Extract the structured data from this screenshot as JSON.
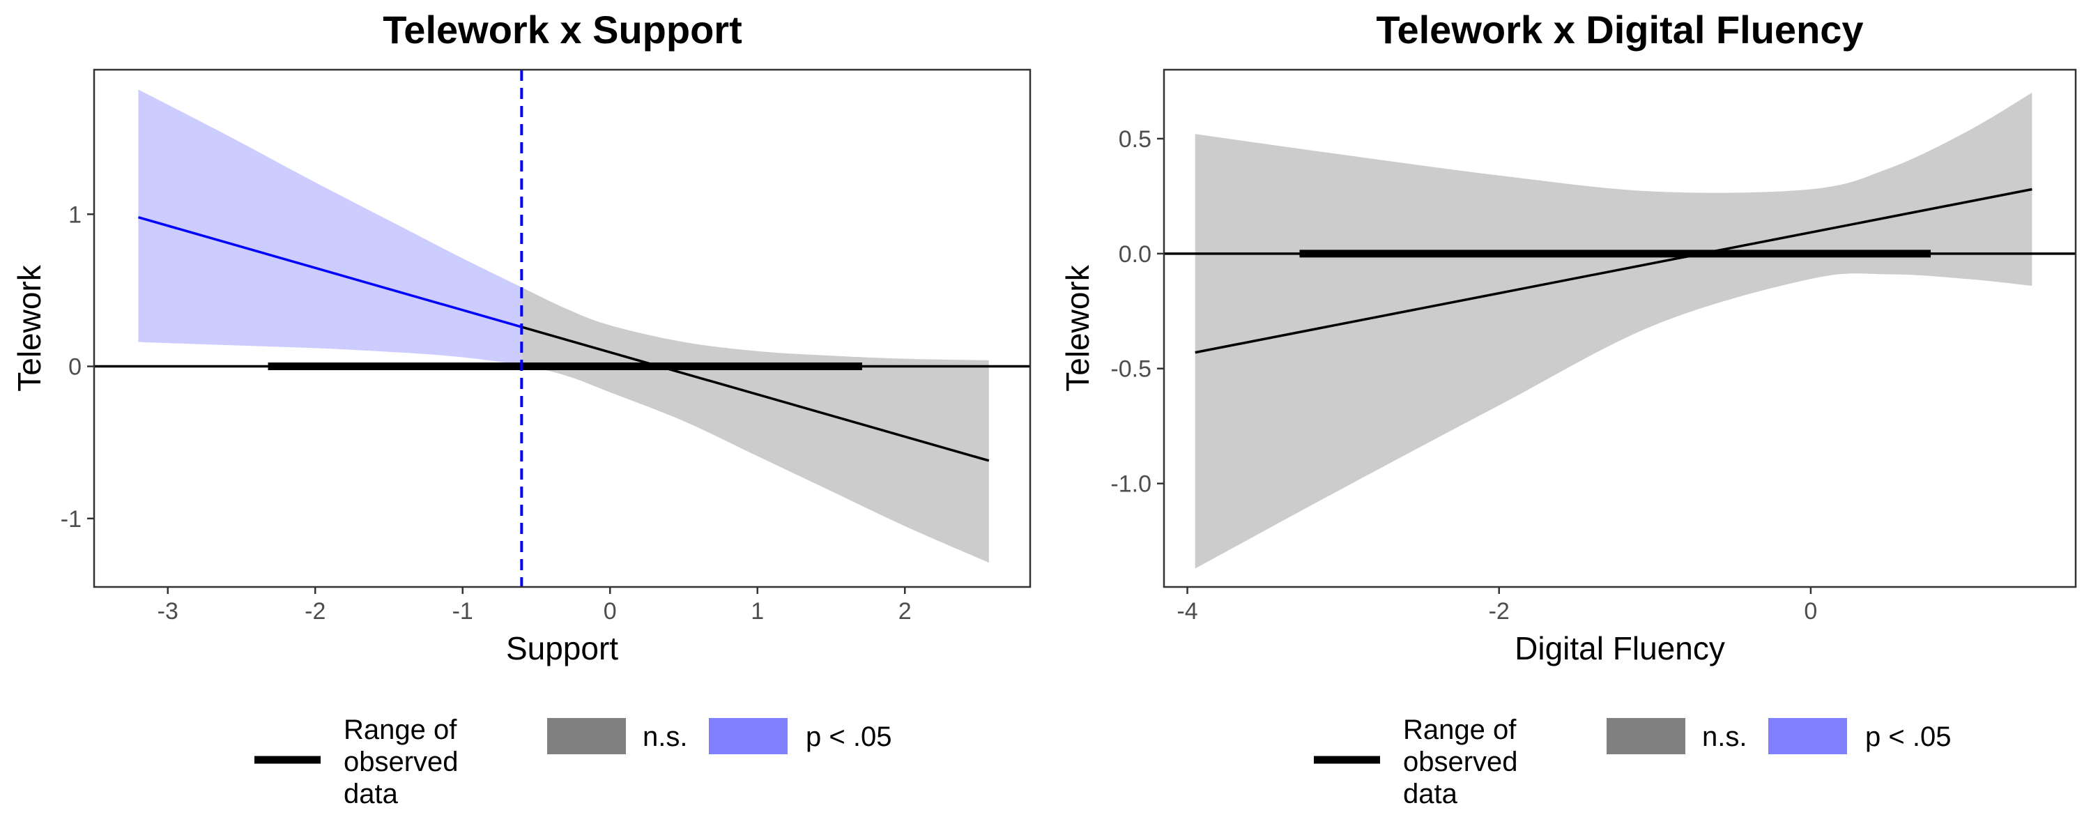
{
  "chart_data": [
    {
      "type": "line",
      "title": "Telework x Support",
      "xlabel": "Support",
      "ylabel": "Telework",
      "xlim": [
        -3.5,
        2.85
      ],
      "ylim": [
        -1.45,
        1.95
      ],
      "x_ticks": [
        -3,
        -2,
        -1,
        0,
        1,
        2
      ],
      "y_ticks": [
        -1,
        0,
        1
      ],
      "x_tick_labels": [
        "-3",
        "-2",
        "-1",
        "0",
        "1",
        "2"
      ],
      "y_tick_labels": [
        "-1",
        "0",
        "1"
      ],
      "slope_line": {
        "x": [
          -3.2,
          2.57
        ],
        "y": [
          0.98,
          -0.62
        ]
      },
      "significance_threshold": -0.6,
      "ci_upper": {
        "x": [
          -3.2,
          -2.6,
          -2.0,
          -1.4,
          -1.0,
          -0.6,
          -0.3,
          0.0,
          0.5,
          1.0,
          1.5,
          2.0,
          2.57
        ],
        "y": [
          1.82,
          1.52,
          1.21,
          0.91,
          0.71,
          0.52,
          0.38,
          0.27,
          0.16,
          0.1,
          0.07,
          0.05,
          0.04
        ]
      },
      "ci_lower": {
        "x": [
          -3.2,
          -2.6,
          -2.0,
          -1.4,
          -1.0,
          -0.6,
          -0.3,
          0.0,
          0.5,
          1.0,
          1.5,
          2.0,
          2.57
        ],
        "y": [
          0.16,
          0.14,
          0.12,
          0.09,
          0.06,
          0.01,
          -0.06,
          -0.17,
          -0.36,
          -0.59,
          -0.82,
          -1.05,
          -1.29
        ]
      },
      "observed_range": [
        -2.32,
        1.71
      ],
      "zero_line": 0,
      "grid": false,
      "legend_position": "bottom"
    },
    {
      "type": "line",
      "title": "Telework x Digital Fluency",
      "xlabel": "Digital Fluency",
      "ylabel": "Telework",
      "xlim": [
        -4.15,
        1.7
      ],
      "ylim": [
        -1.45,
        0.8
      ],
      "x_ticks": [
        -4,
        -2,
        0
      ],
      "y_ticks": [
        -1.0,
        -0.5,
        0.0,
        0.5
      ],
      "x_tick_labels": [
        "-4",
        "-2",
        "0"
      ],
      "y_tick_labels": [
        "-1.0",
        "-0.5",
        "0.0",
        "0.5"
      ],
      "slope_line": {
        "x": [
          -3.95,
          1.42
        ],
        "y": [
          -0.43,
          0.28
        ]
      },
      "ci_upper": {
        "x": [
          -3.95,
          -3.0,
          -2.0,
          -1.0,
          0.0,
          0.5,
          1.0,
          1.42
        ],
        "y": [
          0.52,
          0.43,
          0.34,
          0.27,
          0.28,
          0.37,
          0.53,
          0.7
        ]
      },
      "ci_lower": {
        "x": [
          -3.95,
          -3.0,
          -2.0,
          -1.0,
          0.0,
          0.5,
          1.0,
          1.42
        ],
        "y": [
          -1.37,
          -1.02,
          -0.66,
          -0.31,
          -0.11,
          -0.09,
          -0.11,
          -0.14
        ]
      },
      "observed_range": [
        -3.28,
        0.77
      ],
      "zero_line": 0,
      "grid": false,
      "legend_position": "bottom"
    }
  ],
  "legend": {
    "range_label": [
      "Range of",
      "observed",
      "data"
    ],
    "ns_label": "n.s.",
    "sig_label": "p < .05"
  },
  "colors": {
    "ns_fill": "#cccccc",
    "sig_fill": "#ccccff",
    "sig_line": "#0000ff",
    "ns_line": "#000000",
    "legend_ns_key": "#808080",
    "legend_sig_key": "#8080ff",
    "border": "#333333",
    "tick_text": "#4d4d4d"
  }
}
